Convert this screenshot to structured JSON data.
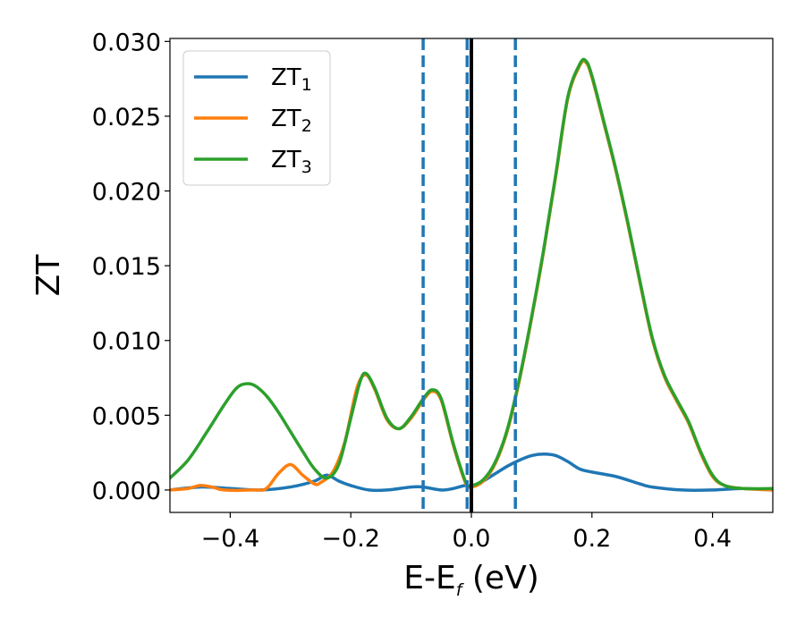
{
  "chart_data": {
    "type": "line",
    "xlabel": {
      "main": "E-E",
      "sub": "f",
      "suffix": " (eV)"
    },
    "ylabel": "ZT",
    "xlim": [
      -0.5,
      0.5
    ],
    "ylim": [
      -0.0015,
      0.0302
    ],
    "xticks": [
      -0.4,
      -0.2,
      0.0,
      0.2,
      0.4
    ],
    "xtick_labels": [
      "−0.4",
      "−0.2",
      "0.0",
      "0.2",
      "0.4"
    ],
    "yticks": [
      0.0,
      0.005,
      0.01,
      0.015,
      0.02,
      0.025,
      0.03
    ],
    "ytick_labels": [
      "0.000",
      "0.005",
      "0.010",
      "0.015",
      "0.020",
      "0.025",
      "0.030"
    ],
    "grid": false,
    "legend_position": "top-left",
    "vertical_lines": [
      {
        "x": -0.08,
        "style": "dashed",
        "color": "#1f77b4"
      },
      {
        "x": -0.007,
        "style": "dashed",
        "color": "#1f77b4"
      },
      {
        "x": 0.0,
        "style": "solid",
        "color": "#000000"
      },
      {
        "x": 0.073,
        "style": "dashed",
        "color": "#1f77b4"
      }
    ],
    "series": [
      {
        "name": "ZT",
        "sub": "1",
        "color": "#1f77b4",
        "points": [
          [
            -0.5,
            0.0
          ],
          [
            -0.45,
            0.0002
          ],
          [
            -0.4,
            0.0001
          ],
          [
            -0.35,
            0.0
          ],
          [
            -0.3,
            0.0002
          ],
          [
            -0.26,
            0.0006
          ],
          [
            -0.24,
            0.001
          ],
          [
            -0.22,
            0.0006
          ],
          [
            -0.2,
            0.0003
          ],
          [
            -0.17,
            0.0
          ],
          [
            -0.14,
            0.0
          ],
          [
            -0.1,
            0.0002
          ],
          [
            -0.08,
            0.0002
          ],
          [
            -0.05,
            0.0
          ],
          [
            -0.03,
            0.0001
          ],
          [
            -0.01,
            0.0003
          ],
          [
            0.0,
            0.0002
          ],
          [
            0.02,
            0.0006
          ],
          [
            0.04,
            0.0011
          ],
          [
            0.06,
            0.0016
          ],
          [
            0.08,
            0.002
          ],
          [
            0.1,
            0.0023
          ],
          [
            0.12,
            0.0024
          ],
          [
            0.14,
            0.0023
          ],
          [
            0.16,
            0.0019
          ],
          [
            0.18,
            0.0014
          ],
          [
            0.2,
            0.0012
          ],
          [
            0.24,
            0.0009
          ],
          [
            0.28,
            0.0004
          ],
          [
            0.3,
            0.0002
          ],
          [
            0.35,
            0.0
          ],
          [
            0.4,
            0.0
          ],
          [
            0.45,
            0.0001
          ],
          [
            0.5,
            0.0
          ]
        ]
      },
      {
        "name": "ZT",
        "sub": "2",
        "color": "#ff7f0e",
        "points": [
          [
            -0.5,
            0.0
          ],
          [
            -0.47,
            0.0001
          ],
          [
            -0.45,
            0.0003
          ],
          [
            -0.43,
            0.0002
          ],
          [
            -0.41,
            0.0
          ],
          [
            -0.36,
            0.0
          ],
          [
            -0.34,
            0.0001
          ],
          [
            -0.32,
            0.0011
          ],
          [
            -0.3,
            0.0017
          ],
          [
            -0.28,
            0.001
          ],
          [
            -0.26,
            0.0004
          ],
          [
            -0.25,
            0.0005
          ],
          [
            -0.23,
            0.0012
          ],
          [
            -0.21,
            0.0032
          ],
          [
            -0.19,
            0.0068
          ],
          [
            -0.175,
            0.0077
          ],
          [
            -0.16,
            0.0067
          ],
          [
            -0.14,
            0.0047
          ],
          [
            -0.12,
            0.0041
          ],
          [
            -0.1,
            0.0048
          ],
          [
            -0.08,
            0.006
          ],
          [
            -0.065,
            0.0066
          ],
          [
            -0.05,
            0.006
          ],
          [
            -0.03,
            0.003
          ],
          [
            -0.01,
            0.0005
          ],
          [
            0.0,
            0.0002
          ],
          [
            0.02,
            0.0006
          ],
          [
            0.04,
            0.0018
          ],
          [
            0.06,
            0.004
          ],
          [
            0.08,
            0.0074
          ],
          [
            0.1,
            0.0115
          ],
          [
            0.12,
            0.016
          ],
          [
            0.14,
            0.021
          ],
          [
            0.16,
            0.0262
          ],
          [
            0.18,
            0.0284
          ],
          [
            0.19,
            0.0286
          ],
          [
            0.2,
            0.0276
          ],
          [
            0.22,
            0.0245
          ],
          [
            0.24,
            0.0213
          ],
          [
            0.26,
            0.0177
          ],
          [
            0.28,
            0.0138
          ],
          [
            0.3,
            0.0101
          ],
          [
            0.32,
            0.0076
          ],
          [
            0.34,
            0.006
          ],
          [
            0.36,
            0.0045
          ],
          [
            0.38,
            0.0025
          ],
          [
            0.4,
            0.0009
          ],
          [
            0.42,
            0.0003
          ],
          [
            0.45,
            0.0001
          ],
          [
            0.5,
            0.0
          ]
        ]
      },
      {
        "name": "ZT",
        "sub": "3",
        "color": "#2ca02c",
        "points": [
          [
            -0.5,
            0.0008
          ],
          [
            -0.47,
            0.002
          ],
          [
            -0.44,
            0.0038
          ],
          [
            -0.41,
            0.0057
          ],
          [
            -0.39,
            0.0068
          ],
          [
            -0.375,
            0.0071
          ],
          [
            -0.36,
            0.007
          ],
          [
            -0.34,
            0.0063
          ],
          [
            -0.32,
            0.0052
          ],
          [
            -0.3,
            0.0039
          ],
          [
            -0.28,
            0.0026
          ],
          [
            -0.26,
            0.0014
          ],
          [
            -0.24,
            0.0008
          ],
          [
            -0.22,
            0.0017
          ],
          [
            -0.2,
            0.0048
          ],
          [
            -0.185,
            0.0072
          ],
          [
            -0.175,
            0.0078
          ],
          [
            -0.16,
            0.0068
          ],
          [
            -0.14,
            0.0048
          ],
          [
            -0.12,
            0.0041
          ],
          [
            -0.1,
            0.0049
          ],
          [
            -0.08,
            0.0061
          ],
          [
            -0.065,
            0.0067
          ],
          [
            -0.05,
            0.0061
          ],
          [
            -0.03,
            0.0031
          ],
          [
            -0.01,
            0.0006
          ],
          [
            0.0,
            0.0003
          ],
          [
            0.02,
            0.0007
          ],
          [
            0.04,
            0.0019
          ],
          [
            0.06,
            0.0041
          ],
          [
            0.08,
            0.0075
          ],
          [
            0.1,
            0.0116
          ],
          [
            0.12,
            0.0161
          ],
          [
            0.14,
            0.0211
          ],
          [
            0.16,
            0.0263
          ],
          [
            0.18,
            0.0285
          ],
          [
            0.19,
            0.0287
          ],
          [
            0.2,
            0.0277
          ],
          [
            0.22,
            0.0246
          ],
          [
            0.24,
            0.0214
          ],
          [
            0.26,
            0.0178
          ],
          [
            0.28,
            0.0139
          ],
          [
            0.3,
            0.0102
          ],
          [
            0.32,
            0.0077
          ],
          [
            0.34,
            0.0061
          ],
          [
            0.36,
            0.0046
          ],
          [
            0.38,
            0.0026
          ],
          [
            0.4,
            0.001
          ],
          [
            0.42,
            0.0003
          ],
          [
            0.45,
            0.0001
          ],
          [
            0.5,
            0.0001
          ]
        ]
      }
    ]
  }
}
